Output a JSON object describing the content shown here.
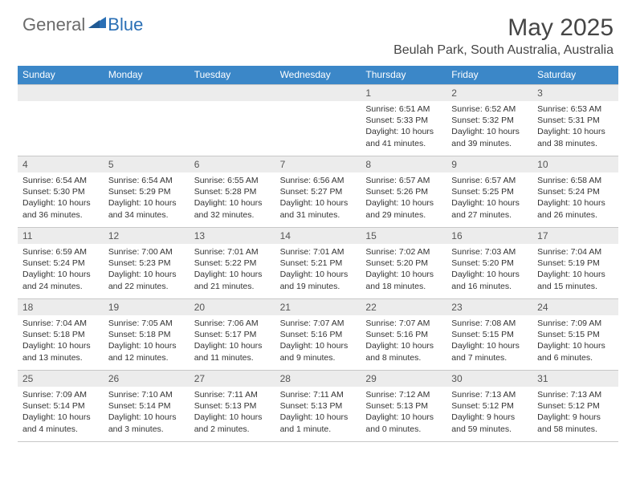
{
  "brand": {
    "part1": "General",
    "part2": "Blue"
  },
  "title": "May 2025",
  "location": "Beulah Park, South Australia, Australia",
  "colors": {
    "header_bg": "#3b87c8",
    "header_text": "#ffffff",
    "daynum_bg": "#ececec",
    "border": "#c8c8c8",
    "brand_gray": "#6b6b6b",
    "brand_blue": "#2a6fb5"
  },
  "weekdays": [
    "Sunday",
    "Monday",
    "Tuesday",
    "Wednesday",
    "Thursday",
    "Friday",
    "Saturday"
  ],
  "weeks": [
    [
      {
        "n": "",
        "sunrise": "",
        "sunset": "",
        "daylight": ""
      },
      {
        "n": "",
        "sunrise": "",
        "sunset": "",
        "daylight": ""
      },
      {
        "n": "",
        "sunrise": "",
        "sunset": "",
        "daylight": ""
      },
      {
        "n": "",
        "sunrise": "",
        "sunset": "",
        "daylight": ""
      },
      {
        "n": "1",
        "sunrise": "Sunrise: 6:51 AM",
        "sunset": "Sunset: 5:33 PM",
        "daylight": "Daylight: 10 hours and 41 minutes."
      },
      {
        "n": "2",
        "sunrise": "Sunrise: 6:52 AM",
        "sunset": "Sunset: 5:32 PM",
        "daylight": "Daylight: 10 hours and 39 minutes."
      },
      {
        "n": "3",
        "sunrise": "Sunrise: 6:53 AM",
        "sunset": "Sunset: 5:31 PM",
        "daylight": "Daylight: 10 hours and 38 minutes."
      }
    ],
    [
      {
        "n": "4",
        "sunrise": "Sunrise: 6:54 AM",
        "sunset": "Sunset: 5:30 PM",
        "daylight": "Daylight: 10 hours and 36 minutes."
      },
      {
        "n": "5",
        "sunrise": "Sunrise: 6:54 AM",
        "sunset": "Sunset: 5:29 PM",
        "daylight": "Daylight: 10 hours and 34 minutes."
      },
      {
        "n": "6",
        "sunrise": "Sunrise: 6:55 AM",
        "sunset": "Sunset: 5:28 PM",
        "daylight": "Daylight: 10 hours and 32 minutes."
      },
      {
        "n": "7",
        "sunrise": "Sunrise: 6:56 AM",
        "sunset": "Sunset: 5:27 PM",
        "daylight": "Daylight: 10 hours and 31 minutes."
      },
      {
        "n": "8",
        "sunrise": "Sunrise: 6:57 AM",
        "sunset": "Sunset: 5:26 PM",
        "daylight": "Daylight: 10 hours and 29 minutes."
      },
      {
        "n": "9",
        "sunrise": "Sunrise: 6:57 AM",
        "sunset": "Sunset: 5:25 PM",
        "daylight": "Daylight: 10 hours and 27 minutes."
      },
      {
        "n": "10",
        "sunrise": "Sunrise: 6:58 AM",
        "sunset": "Sunset: 5:24 PM",
        "daylight": "Daylight: 10 hours and 26 minutes."
      }
    ],
    [
      {
        "n": "11",
        "sunrise": "Sunrise: 6:59 AM",
        "sunset": "Sunset: 5:24 PM",
        "daylight": "Daylight: 10 hours and 24 minutes."
      },
      {
        "n": "12",
        "sunrise": "Sunrise: 7:00 AM",
        "sunset": "Sunset: 5:23 PM",
        "daylight": "Daylight: 10 hours and 22 minutes."
      },
      {
        "n": "13",
        "sunrise": "Sunrise: 7:01 AM",
        "sunset": "Sunset: 5:22 PM",
        "daylight": "Daylight: 10 hours and 21 minutes."
      },
      {
        "n": "14",
        "sunrise": "Sunrise: 7:01 AM",
        "sunset": "Sunset: 5:21 PM",
        "daylight": "Daylight: 10 hours and 19 minutes."
      },
      {
        "n": "15",
        "sunrise": "Sunrise: 7:02 AM",
        "sunset": "Sunset: 5:20 PM",
        "daylight": "Daylight: 10 hours and 18 minutes."
      },
      {
        "n": "16",
        "sunrise": "Sunrise: 7:03 AM",
        "sunset": "Sunset: 5:20 PM",
        "daylight": "Daylight: 10 hours and 16 minutes."
      },
      {
        "n": "17",
        "sunrise": "Sunrise: 7:04 AM",
        "sunset": "Sunset: 5:19 PM",
        "daylight": "Daylight: 10 hours and 15 minutes."
      }
    ],
    [
      {
        "n": "18",
        "sunrise": "Sunrise: 7:04 AM",
        "sunset": "Sunset: 5:18 PM",
        "daylight": "Daylight: 10 hours and 13 minutes."
      },
      {
        "n": "19",
        "sunrise": "Sunrise: 7:05 AM",
        "sunset": "Sunset: 5:18 PM",
        "daylight": "Daylight: 10 hours and 12 minutes."
      },
      {
        "n": "20",
        "sunrise": "Sunrise: 7:06 AM",
        "sunset": "Sunset: 5:17 PM",
        "daylight": "Daylight: 10 hours and 11 minutes."
      },
      {
        "n": "21",
        "sunrise": "Sunrise: 7:07 AM",
        "sunset": "Sunset: 5:16 PM",
        "daylight": "Daylight: 10 hours and 9 minutes."
      },
      {
        "n": "22",
        "sunrise": "Sunrise: 7:07 AM",
        "sunset": "Sunset: 5:16 PM",
        "daylight": "Daylight: 10 hours and 8 minutes."
      },
      {
        "n": "23",
        "sunrise": "Sunrise: 7:08 AM",
        "sunset": "Sunset: 5:15 PM",
        "daylight": "Daylight: 10 hours and 7 minutes."
      },
      {
        "n": "24",
        "sunrise": "Sunrise: 7:09 AM",
        "sunset": "Sunset: 5:15 PM",
        "daylight": "Daylight: 10 hours and 6 minutes."
      }
    ],
    [
      {
        "n": "25",
        "sunrise": "Sunrise: 7:09 AM",
        "sunset": "Sunset: 5:14 PM",
        "daylight": "Daylight: 10 hours and 4 minutes."
      },
      {
        "n": "26",
        "sunrise": "Sunrise: 7:10 AM",
        "sunset": "Sunset: 5:14 PM",
        "daylight": "Daylight: 10 hours and 3 minutes."
      },
      {
        "n": "27",
        "sunrise": "Sunrise: 7:11 AM",
        "sunset": "Sunset: 5:13 PM",
        "daylight": "Daylight: 10 hours and 2 minutes."
      },
      {
        "n": "28",
        "sunrise": "Sunrise: 7:11 AM",
        "sunset": "Sunset: 5:13 PM",
        "daylight": "Daylight: 10 hours and 1 minute."
      },
      {
        "n": "29",
        "sunrise": "Sunrise: 7:12 AM",
        "sunset": "Sunset: 5:13 PM",
        "daylight": "Daylight: 10 hours and 0 minutes."
      },
      {
        "n": "30",
        "sunrise": "Sunrise: 7:13 AM",
        "sunset": "Sunset: 5:12 PM",
        "daylight": "Daylight: 9 hours and 59 minutes."
      },
      {
        "n": "31",
        "sunrise": "Sunrise: 7:13 AM",
        "sunset": "Sunset: 5:12 PM",
        "daylight": "Daylight: 9 hours and 58 minutes."
      }
    ]
  ]
}
